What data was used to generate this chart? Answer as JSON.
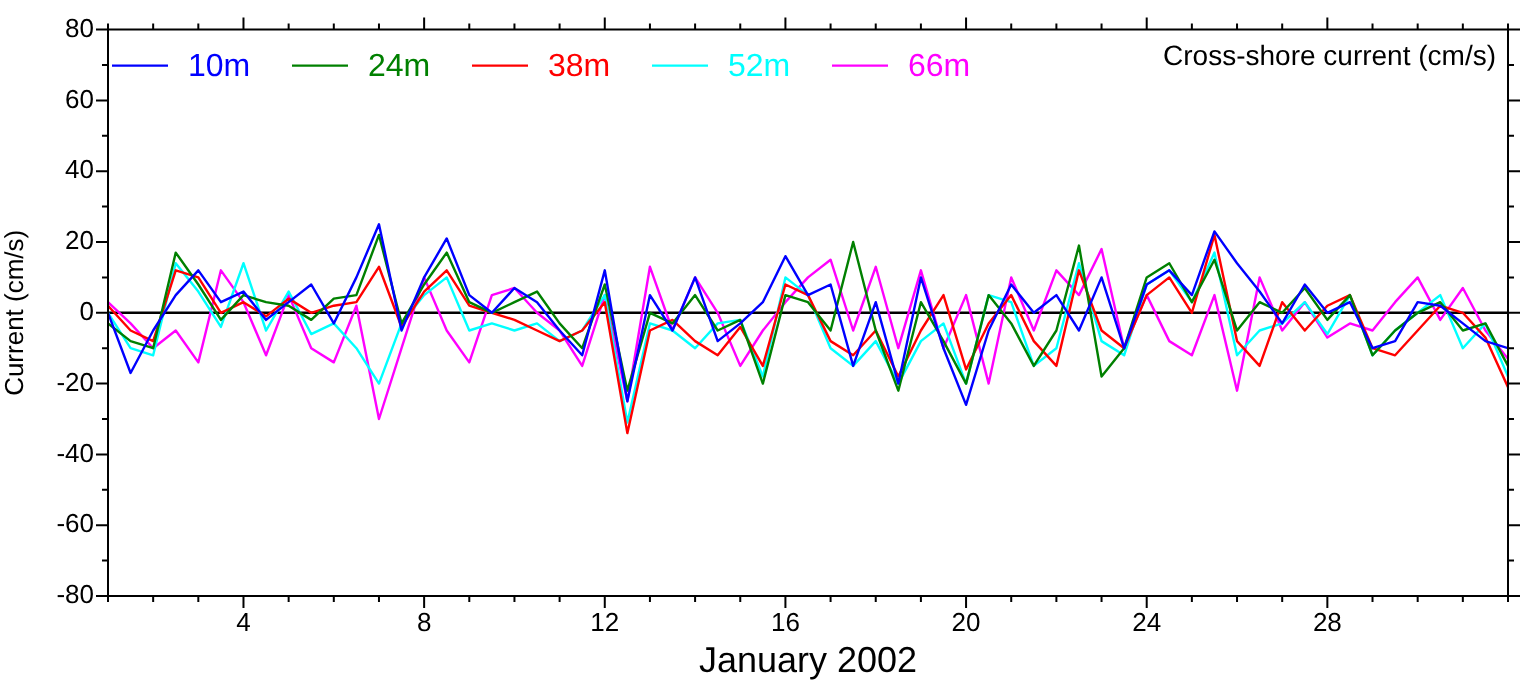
{
  "chart_data": {
    "type": "line",
    "xlabel": "January 2002",
    "ylabel": "Current (cm/s)",
    "annotations": [
      "Cross-shore current (cm/s)"
    ],
    "x": [
      1,
      1.5,
      2,
      2.5,
      3,
      3.5,
      4,
      4.5,
      5,
      5.5,
      6,
      6.5,
      7,
      7.5,
      8,
      8.5,
      9,
      9.5,
      10,
      10.5,
      11,
      11.5,
      12,
      12.5,
      13,
      13.5,
      14,
      14.5,
      15,
      15.5,
      16,
      16.5,
      17,
      17.5,
      18,
      18.5,
      19,
      19.5,
      20,
      20.5,
      21,
      21.5,
      22,
      22.5,
      23,
      23.5,
      24,
      24.5,
      25,
      25.5,
      26,
      26.5,
      27,
      27.5,
      28,
      28.5,
      29,
      29.5,
      30,
      30.5,
      31,
      31.5,
      32
    ],
    "series": [
      {
        "name": "10m",
        "color": "#0000ff",
        "values": [
          0,
          -17,
          -5,
          5,
          12,
          3,
          6,
          -2,
          3,
          8,
          -3,
          10,
          25,
          -5,
          10,
          21,
          5,
          0,
          7,
          3,
          -5,
          -12,
          12,
          -25,
          5,
          -5,
          10,
          -8,
          -3,
          3,
          16,
          5,
          8,
          -15,
          3,
          -20,
          10,
          -10,
          -26,
          -5,
          8,
          0,
          5,
          -5,
          10,
          -10,
          8,
          12,
          5,
          23,
          14,
          6,
          -3,
          8,
          0,
          3,
          -10,
          -8,
          3,
          2,
          -3,
          -8,
          -10
        ]
      },
      {
        "name": "24m",
        "color": "#008000",
        "values": [
          -3,
          -8,
          -10,
          17,
          8,
          -2,
          5,
          3,
          2,
          -2,
          4,
          5,
          22,
          -3,
          8,
          17,
          3,
          0,
          3,
          6,
          -3,
          -10,
          8,
          -22,
          0,
          -3,
          5,
          -5,
          -2,
          -20,
          5,
          3,
          -5,
          20,
          -5,
          -22,
          3,
          -8,
          -20,
          5,
          -3,
          -15,
          -5,
          19,
          -18,
          -10,
          10,
          14,
          3,
          15,
          -5,
          3,
          0,
          7,
          -2,
          5,
          -12,
          -5,
          0,
          3,
          -5,
          -3,
          -15
        ]
      },
      {
        "name": "38m",
        "color": "#ff0000",
        "values": [
          2,
          -5,
          -8,
          12,
          10,
          0,
          3,
          -1,
          4,
          0,
          2,
          3,
          13,
          -4,
          6,
          12,
          2,
          0,
          -2,
          -5,
          -8,
          -5,
          3,
          -34,
          -5,
          -2,
          -8,
          -12,
          -4,
          -15,
          8,
          5,
          -8,
          -12,
          -5,
          -18,
          -5,
          5,
          -16,
          -3,
          5,
          -8,
          -15,
          12,
          -5,
          -10,
          5,
          10,
          0,
          22,
          -8,
          -15,
          3,
          -5,
          2,
          5,
          -10,
          -12,
          -5,
          2,
          0,
          -7,
          -21
        ]
      },
      {
        "name": "52m",
        "color": "#00ffff",
        "values": [
          0,
          -10,
          -12,
          14,
          6,
          -4,
          14,
          -5,
          6,
          -6,
          -3,
          -10,
          -20,
          -3,
          5,
          10,
          -5,
          -3,
          -5,
          -3,
          -8,
          -5,
          5,
          -31,
          -3,
          -5,
          -10,
          -3,
          -2,
          -18,
          10,
          5,
          -10,
          -15,
          -8,
          -20,
          -8,
          -3,
          -20,
          5,
          3,
          -15,
          -10,
          14,
          -8,
          -12,
          8,
          12,
          3,
          17,
          -12,
          -5,
          -3,
          3,
          -6,
          5,
          -12,
          -5,
          0,
          5,
          -10,
          -3,
          -18
        ]
      },
      {
        "name": "66m",
        "color": "#ff00ff",
        "values": [
          3,
          -3,
          -10,
          -5,
          -14,
          12,
          3,
          -12,
          5,
          -10,
          -14,
          2,
          -30,
          -10,
          10,
          -5,
          -14,
          5,
          7,
          0,
          -5,
          -15,
          5,
          -25,
          13,
          -5,
          10,
          0,
          -15,
          -5,
          3,
          10,
          15,
          -5,
          13,
          -10,
          12,
          -10,
          5,
          -20,
          10,
          -5,
          12,
          5,
          18,
          -10,
          5,
          -8,
          -12,
          5,
          -22,
          10,
          -5,
          3,
          -7,
          -3,
          -5,
          3,
          10,
          -2,
          7,
          -5,
          -13
        ]
      }
    ],
    "xlim": [
      1,
      32
    ],
    "xticks": [
      {
        "value": 1,
        "label": null
      },
      {
        "value": 2,
        "label": null
      },
      {
        "value": 3,
        "label": null
      },
      4,
      {
        "value": 5,
        "label": null
      },
      {
        "value": 6,
        "label": null
      },
      {
        "value": 7,
        "label": null
      },
      8,
      {
        "value": 9,
        "label": null
      },
      {
        "value": 10,
        "label": null
      },
      {
        "value": 11,
        "label": null
      },
      12,
      {
        "value": 13,
        "label": null
      },
      {
        "value": 14,
        "label": null
      },
      {
        "value": 15,
        "label": null
      },
      16,
      {
        "value": 17,
        "label": null
      },
      {
        "value": 18,
        "label": null
      },
      {
        "value": 19,
        "label": null
      },
      20,
      {
        "value": 21,
        "label": null
      },
      {
        "value": 22,
        "label": null
      },
      {
        "value": 23,
        "label": null
      },
      24,
      {
        "value": 25,
        "label": null
      },
      {
        "value": 26,
        "label": null
      },
      {
        "value": 27,
        "label": null
      },
      28,
      {
        "value": 29,
        "label": null
      },
      {
        "value": 30,
        "label": null
      },
      {
        "value": 31,
        "label": null
      },
      {
        "value": 32,
        "label": null
      }
    ],
    "ylim": [
      -80,
      80
    ],
    "yticks": [
      -80,
      {
        "value": -70,
        "label": null
      },
      -60,
      {
        "value": -50,
        "label": null
      },
      -40,
      {
        "value": -30,
        "label": null
      },
      -20,
      {
        "value": -10,
        "label": null
      },
      0,
      {
        "value": 10,
        "label": null
      },
      20,
      {
        "value": 30,
        "label": null
      },
      40,
      {
        "value": 50,
        "label": null
      },
      60,
      {
        "value": 70,
        "label": null
      },
      80
    ],
    "ref_lines": [
      {
        "axis": "y",
        "value": 0,
        "color": "#000000"
      }
    ],
    "legend": "top left",
    "grid": false,
    "marker": "none",
    "line_style": "solid"
  }
}
